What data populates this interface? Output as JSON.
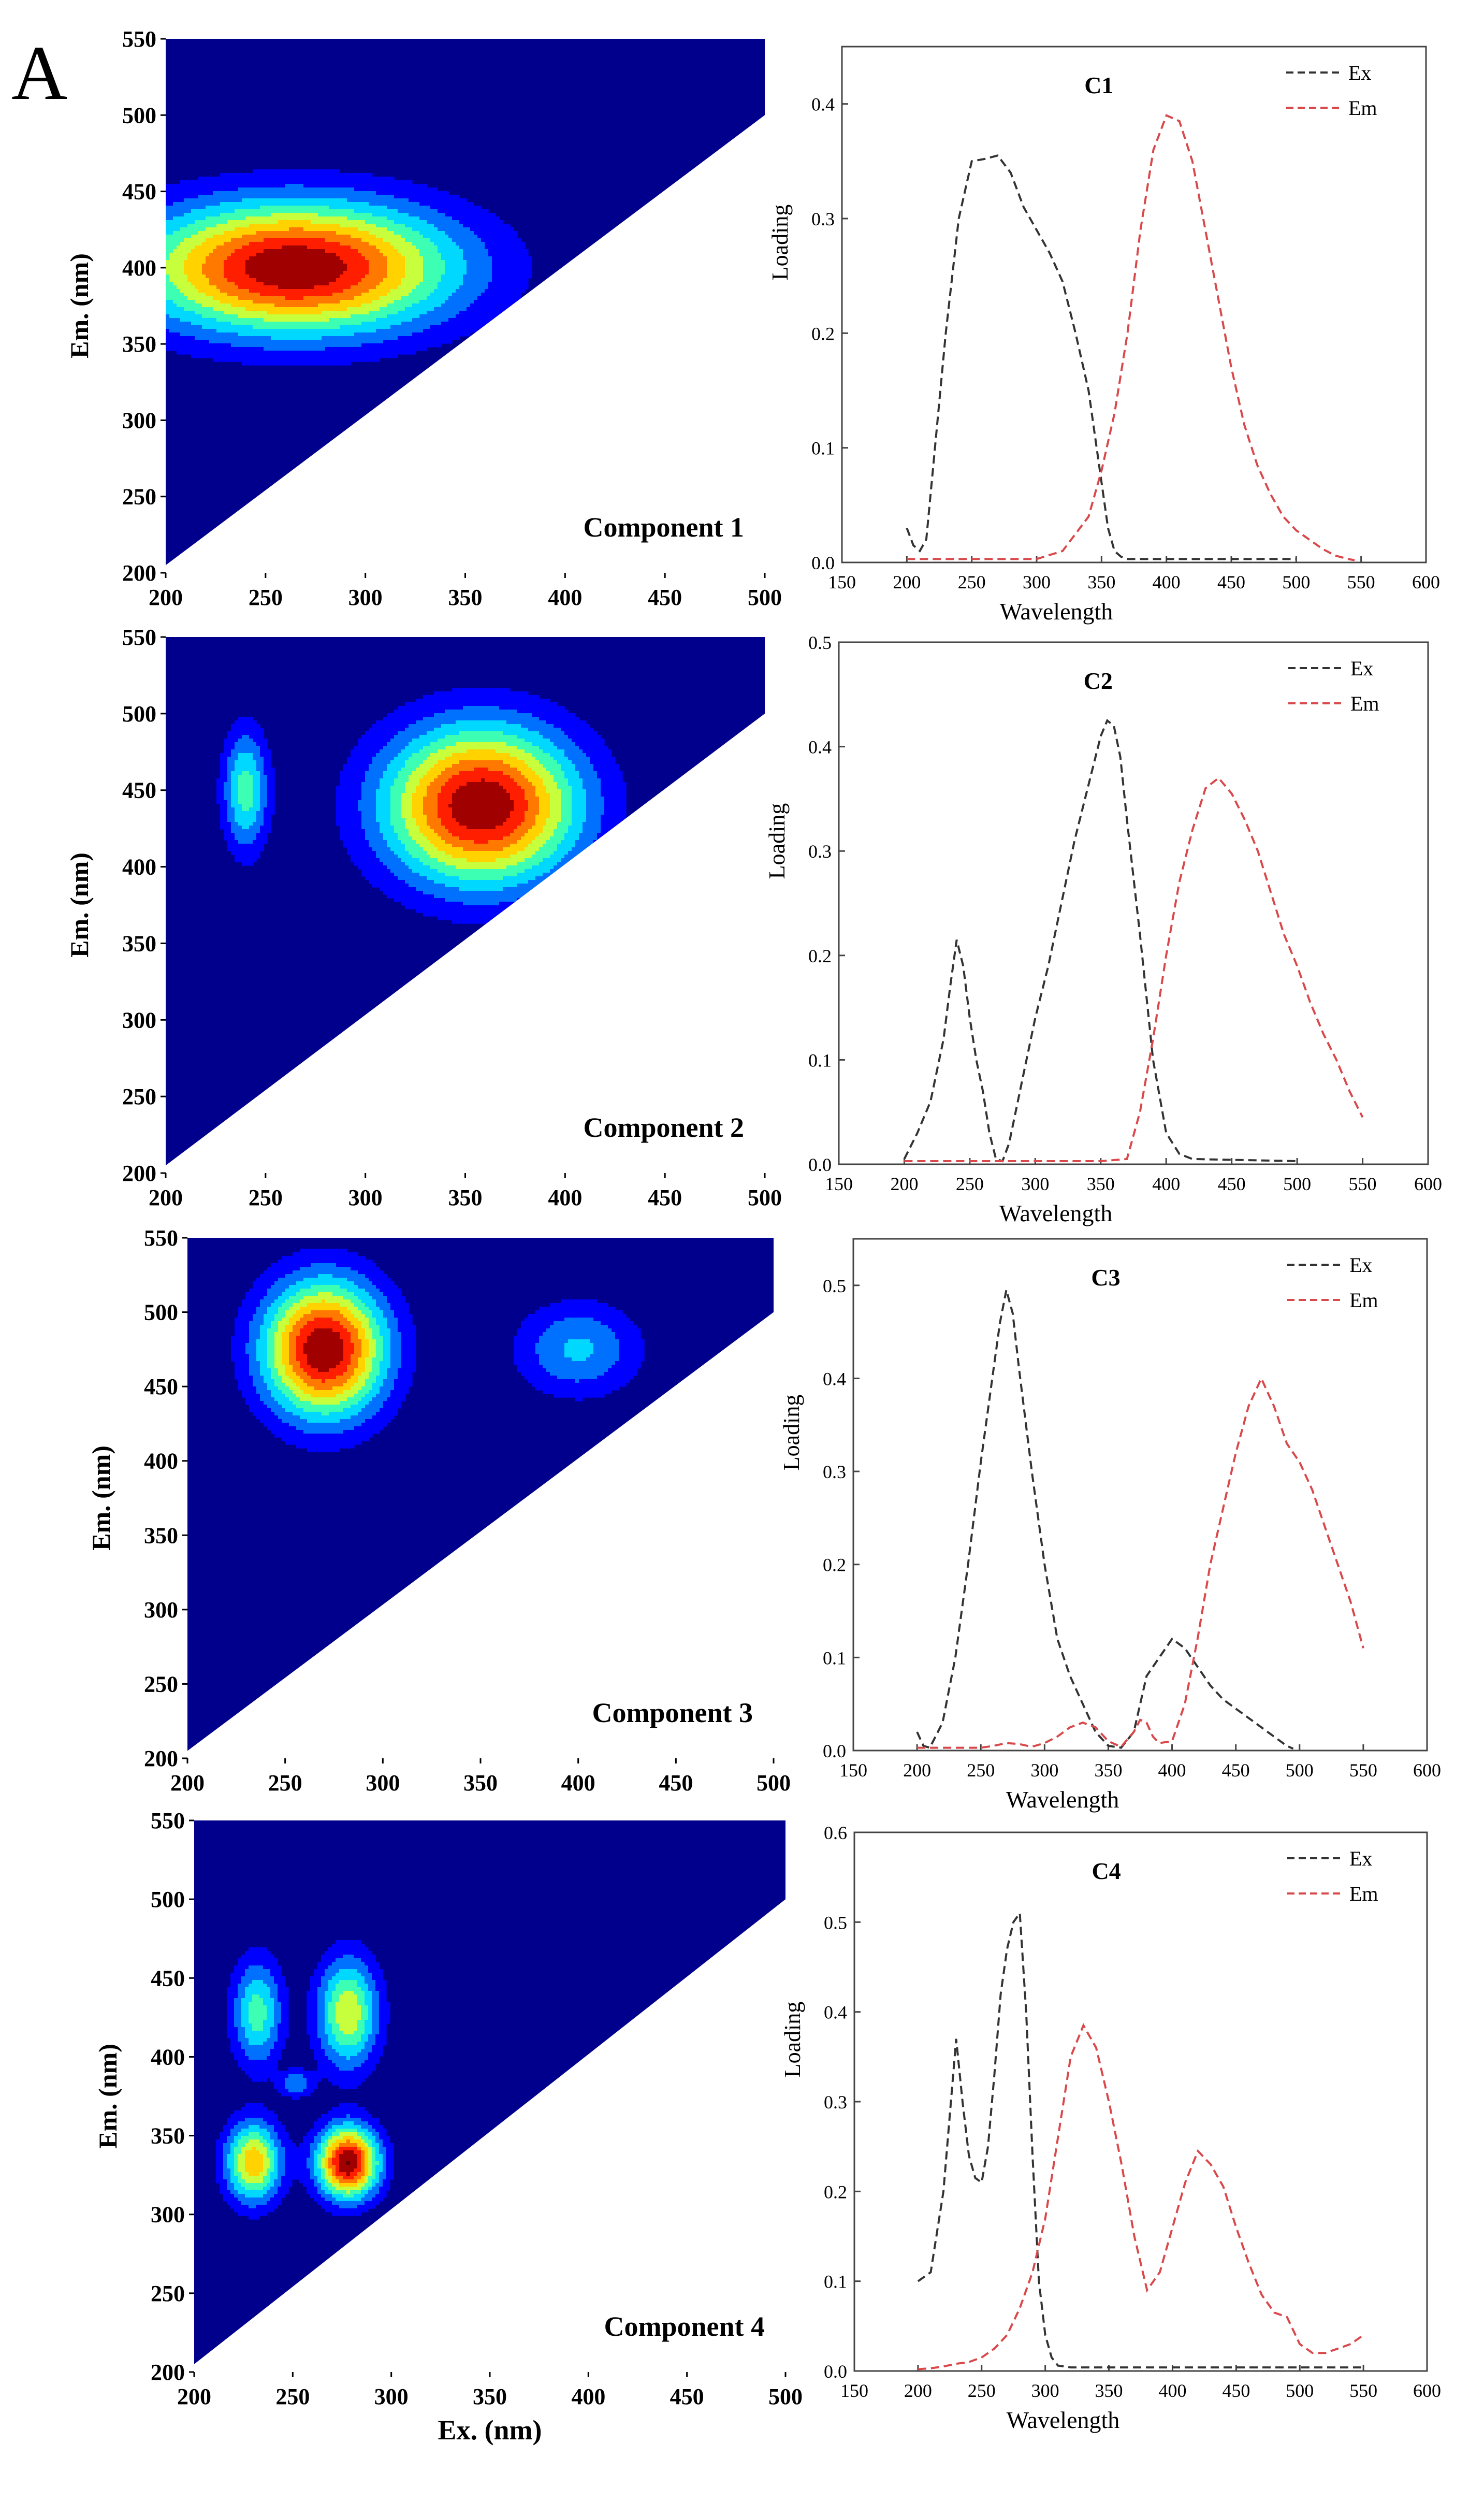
{
  "figure_letter": "A",
  "colors": {
    "ex_line": "#333333",
    "em_line": "#d9484a",
    "map_background": "#00008c",
    "contour_levels": [
      "#0000ff",
      "#0070ff",
      "#00d8ff",
      "#3cffb4",
      "#c8ff3c",
      "#ffd200",
      "#ff7800",
      "#ff1e00",
      "#a00000",
      "#5a0000"
    ]
  },
  "chart_data": [
    {
      "type": "contour",
      "title": "Component 1",
      "xlabel": "",
      "ylabel": "Em. (nm)",
      "xlim": [
        200,
        500
      ],
      "ylim": [
        200,
        550
      ],
      "xticks": [
        "200",
        "250",
        "300",
        "350",
        "400",
        "450",
        "500"
      ],
      "yticks": [
        "200",
        "250",
        "300",
        "350",
        "400",
        "450",
        "500",
        "550"
      ],
      "valid_region_boundary": [
        [
          200,
          205
        ],
        [
          500,
          500
        ]
      ],
      "peaks": [
        {
          "ex": 265,
          "em": 400,
          "sx": 55,
          "sy": 30,
          "intensity": 1.0
        }
      ]
    },
    {
      "type": "line",
      "title": "C1",
      "xlabel": "Wavelength",
      "ylabel": "Loading",
      "xlim": [
        150,
        600
      ],
      "ylim": [
        0,
        0.45
      ],
      "xticks": [
        "150",
        "200",
        "250",
        "300",
        "350",
        "400",
        "450",
        "500",
        "550",
        "600"
      ],
      "yticks": [
        "0.0",
        "0.1",
        "0.2",
        "0.3",
        "0.4"
      ],
      "legend": [
        "Ex",
        "Em"
      ],
      "series": [
        {
          "name": "Ex",
          "x": [
            200,
            205,
            210,
            215,
            220,
            230,
            240,
            250,
            260,
            270,
            280,
            290,
            300,
            310,
            320,
            330,
            340,
            350,
            355,
            360,
            365,
            370,
            400,
            450,
            500
          ],
          "y": [
            0.03,
            0.015,
            0.01,
            0.02,
            0.08,
            0.2,
            0.3,
            0.35,
            0.352,
            0.355,
            0.34,
            0.31,
            0.29,
            0.27,
            0.245,
            0.2,
            0.15,
            0.07,
            0.03,
            0.01,
            0.005,
            0.003,
            0.003,
            0.003,
            0.003
          ]
        },
        {
          "name": "Em",
          "x": [
            200,
            250,
            300,
            320,
            340,
            350,
            360,
            370,
            380,
            390,
            400,
            410,
            420,
            430,
            440,
            450,
            460,
            470,
            480,
            490,
            500,
            510,
            520,
            530,
            540,
            545
          ],
          "y": [
            0.003,
            0.003,
            0.003,
            0.01,
            0.04,
            0.08,
            0.13,
            0.2,
            0.29,
            0.36,
            0.39,
            0.385,
            0.35,
            0.29,
            0.23,
            0.17,
            0.12,
            0.085,
            0.06,
            0.04,
            0.028,
            0.02,
            0.012,
            0.006,
            0.003,
            0.002
          ]
        }
      ]
    },
    {
      "type": "contour",
      "title": "Component 2",
      "xlabel": "",
      "ylabel": "Em. (nm)",
      "xlim": [
        200,
        500
      ],
      "ylim": [
        200,
        550
      ],
      "xticks": [
        "200",
        "250",
        "300",
        "350",
        "400",
        "450",
        "500"
      ],
      "yticks": [
        "200",
        "250",
        "300",
        "350",
        "400",
        "450",
        "500",
        "550"
      ],
      "valid_region_boundary": [
        [
          200,
          205
        ],
        [
          500,
          500
        ]
      ],
      "peaks": [
        {
          "ex": 358,
          "em": 440,
          "sx": 34,
          "sy": 36,
          "intensity": 1.0
        },
        {
          "ex": 240,
          "em": 450,
          "sx": 8,
          "sy": 28,
          "intensity": 0.45
        }
      ]
    },
    {
      "type": "line",
      "title": "C2",
      "xlabel": "Wavelength",
      "ylabel": "Loading",
      "xlim": [
        150,
        600
      ],
      "ylim": [
        0,
        0.5
      ],
      "xticks": [
        "150",
        "200",
        "250",
        "300",
        "350",
        "400",
        "450",
        "500",
        "550",
        "600"
      ],
      "yticks": [
        "0.0",
        "0.1",
        "0.2",
        "0.3",
        "0.4",
        "0.5"
      ],
      "legend": [
        "Ex",
        "Em"
      ],
      "series": [
        {
          "name": "Ex",
          "x": [
            200,
            210,
            220,
            230,
            235,
            240,
            245,
            250,
            255,
            260,
            265,
            270,
            275,
            280,
            290,
            300,
            310,
            320,
            330,
            340,
            350,
            355,
            360,
            365,
            370,
            380,
            390,
            400,
            410,
            420,
            500
          ],
          "y": [
            0.005,
            0.03,
            0.06,
            0.12,
            0.17,
            0.215,
            0.19,
            0.14,
            0.1,
            0.07,
            0.03,
            0.005,
            0.003,
            0.02,
            0.08,
            0.14,
            0.19,
            0.25,
            0.31,
            0.36,
            0.41,
            0.425,
            0.42,
            0.39,
            0.33,
            0.22,
            0.1,
            0.03,
            0.01,
            0.005,
            0.003
          ]
        },
        {
          "name": "Em",
          "x": [
            200,
            250,
            300,
            350,
            370,
            380,
            390,
            400,
            410,
            420,
            430,
            440,
            450,
            460,
            470,
            480,
            490,
            500,
            510,
            520,
            530,
            540,
            550
          ],
          "y": [
            0.003,
            0.003,
            0.003,
            0.003,
            0.005,
            0.05,
            0.12,
            0.2,
            0.27,
            0.32,
            0.36,
            0.37,
            0.355,
            0.33,
            0.3,
            0.26,
            0.22,
            0.19,
            0.155,
            0.125,
            0.1,
            0.07,
            0.045
          ]
        }
      ]
    },
    {
      "type": "contour",
      "title": "Component 3",
      "xlabel": "",
      "ylabel": "Em. (nm)",
      "xlim": [
        200,
        500
      ],
      "ylim": [
        200,
        550
      ],
      "xticks": [
        "200",
        "250",
        "300",
        "350",
        "400",
        "450",
        "500"
      ],
      "yticks": [
        "200",
        "250",
        "300",
        "350",
        "400",
        "450",
        "500",
        "550"
      ],
      "valid_region_boundary": [
        [
          200,
          205
        ],
        [
          500,
          500
        ]
      ],
      "peaks": [
        {
          "ex": 270,
          "em": 475,
          "sx": 22,
          "sy": 32,
          "intensity": 1.0
        },
        {
          "ex": 400,
          "em": 475,
          "sx": 22,
          "sy": 22,
          "intensity": 0.32
        }
      ]
    },
    {
      "type": "line",
      "title": "C3",
      "xlabel": "Wavelength",
      "ylabel": "Loading",
      "xlim": [
        150,
        600
      ],
      "ylim": [
        0,
        0.55
      ],
      "xticks": [
        "150",
        "200",
        "250",
        "300",
        "350",
        "400",
        "450",
        "500",
        "550",
        "600"
      ],
      "yticks": [
        "0.0",
        "0.1",
        "0.2",
        "0.3",
        "0.4",
        "0.5"
      ],
      "legend": [
        "Ex",
        "Em"
      ],
      "series": [
        {
          "name": "Ex",
          "x": [
            200,
            205,
            210,
            220,
            230,
            240,
            250,
            260,
            265,
            270,
            275,
            280,
            290,
            300,
            310,
            320,
            330,
            340,
            350,
            360,
            370,
            380,
            390,
            400,
            410,
            420,
            430,
            440,
            450,
            460,
            470,
            480,
            490,
            495
          ],
          "y": [
            0.02,
            0.005,
            0.003,
            0.03,
            0.1,
            0.2,
            0.31,
            0.41,
            0.46,
            0.495,
            0.47,
            0.41,
            0.3,
            0.2,
            0.12,
            0.08,
            0.05,
            0.02,
            0.005,
            0.003,
            0.02,
            0.08,
            0.1,
            0.12,
            0.11,
            0.09,
            0.07,
            0.055,
            0.045,
            0.035,
            0.025,
            0.015,
            0.005,
            0.002
          ]
        },
        {
          "name": "Em",
          "x": [
            200,
            250,
            260,
            270,
            280,
            290,
            300,
            310,
            320,
            330,
            340,
            350,
            360,
            370,
            375,
            380,
            385,
            390,
            400,
            410,
            420,
            430,
            440,
            450,
            460,
            470,
            480,
            490,
            500,
            510,
            520,
            530,
            540,
            550
          ],
          "y": [
            0.003,
            0.003,
            0.005,
            0.008,
            0.007,
            0.004,
            0.008,
            0.015,
            0.025,
            0.03,
            0.025,
            0.01,
            0.004,
            0.02,
            0.033,
            0.03,
            0.015,
            0.008,
            0.01,
            0.05,
            0.12,
            0.2,
            0.26,
            0.32,
            0.37,
            0.4,
            0.37,
            0.33,
            0.31,
            0.28,
            0.24,
            0.2,
            0.16,
            0.11
          ]
        }
      ]
    },
    {
      "type": "contour",
      "title": "Component 4",
      "xlabel": "Ex. (nm)",
      "ylabel": "Em. (nm)",
      "xlim": [
        200,
        500
      ],
      "ylim": [
        200,
        550
      ],
      "xticks": [
        "200",
        "250",
        "300",
        "350",
        "400",
        "450",
        "500"
      ],
      "yticks": [
        "200",
        "250",
        "300",
        "350",
        "400",
        "450",
        "500",
        "550"
      ],
      "valid_region_boundary": [
        [
          200,
          205
        ],
        [
          500,
          500
        ]
      ],
      "peaks": [
        {
          "ex": 278,
          "em": 333,
          "sx": 11,
          "sy": 16,
          "intensity": 1.0
        },
        {
          "ex": 230,
          "em": 333,
          "sx": 10,
          "sy": 18,
          "intensity": 0.68
        },
        {
          "ex": 278,
          "em": 428,
          "sx": 11,
          "sy": 25,
          "intensity": 0.58
        },
        {
          "ex": 232,
          "em": 428,
          "sx": 9,
          "sy": 24,
          "intensity": 0.45
        },
        {
          "ex": 252,
          "em": 383,
          "sx": 6,
          "sy": 6,
          "intensity": 0.28
        }
      ]
    },
    {
      "type": "line",
      "title": "C4",
      "xlabel": "Wavelength",
      "ylabel": "Loading",
      "xlim": [
        150,
        600
      ],
      "ylim": [
        0,
        0.6
      ],
      "xticks": [
        "150",
        "200",
        "250",
        "300",
        "350",
        "400",
        "450",
        "500",
        "550",
        "600"
      ],
      "yticks": [
        "0.0",
        "0.1",
        "0.2",
        "0.3",
        "0.4",
        "0.5",
        "0.6"
      ],
      "legend": [
        "Ex",
        "Em"
      ],
      "series": [
        {
          "name": "Ex",
          "x": [
            200,
            205,
            210,
            220,
            230,
            235,
            240,
            245,
            250,
            255,
            260,
            265,
            270,
            275,
            280,
            285,
            290,
            295,
            300,
            305,
            310,
            320,
            350,
            400,
            450,
            500,
            550
          ],
          "y": [
            0.1,
            0.105,
            0.11,
            0.2,
            0.37,
            0.3,
            0.24,
            0.215,
            0.21,
            0.25,
            0.33,
            0.42,
            0.47,
            0.5,
            0.51,
            0.4,
            0.24,
            0.1,
            0.04,
            0.015,
            0.006,
            0.004,
            0.004,
            0.004,
            0.004,
            0.004,
            0.004
          ]
        },
        {
          "name": "Em",
          "x": [
            200,
            210,
            220,
            230,
            240,
            250,
            260,
            270,
            280,
            290,
            300,
            310,
            320,
            330,
            340,
            350,
            360,
            370,
            380,
            390,
            400,
            410,
            420,
            430,
            440,
            450,
            460,
            470,
            480,
            490,
            500,
            510,
            520,
            530,
            540,
            550
          ],
          "y": [
            0.002,
            0.003,
            0.005,
            0.008,
            0.01,
            0.015,
            0.025,
            0.04,
            0.07,
            0.11,
            0.17,
            0.26,
            0.35,
            0.385,
            0.36,
            0.3,
            0.23,
            0.15,
            0.09,
            0.11,
            0.16,
            0.21,
            0.245,
            0.23,
            0.205,
            0.16,
            0.12,
            0.085,
            0.065,
            0.06,
            0.03,
            0.02,
            0.02,
            0.025,
            0.03,
            0.04
          ]
        }
      ]
    }
  ]
}
